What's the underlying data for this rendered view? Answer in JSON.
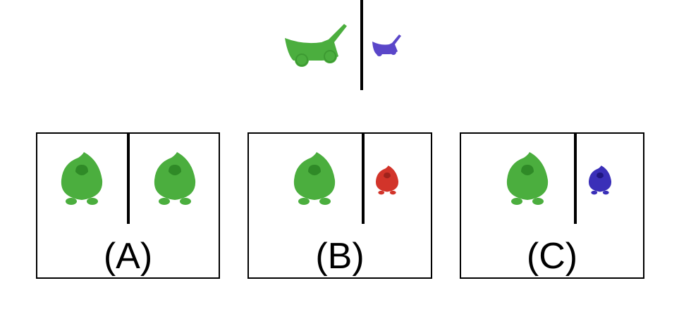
{
  "prompt": {
    "left_object": {
      "icon": "lawn-mower-icon",
      "color": "#4bae3e"
    },
    "right_object": {
      "icon": "lawn-mower-icon",
      "color": "#5a46c9"
    }
  },
  "options": [
    {
      "label": "(A)",
      "left": {
        "icon": "blob-creature-icon",
        "color": "#4bae3e"
      },
      "right": {
        "icon": "blob-creature-icon",
        "color": "#4bae3e"
      }
    },
    {
      "label": "(B)",
      "left": {
        "icon": "blob-creature-icon",
        "color": "#4bae3e"
      },
      "right": {
        "icon": "blob-creature-icon",
        "color": "#d2342a"
      }
    },
    {
      "label": "(C)",
      "left": {
        "icon": "blob-creature-icon",
        "color": "#4bae3e"
      },
      "right": {
        "icon": "blob-creature-icon",
        "color": "#3a2fb8"
      }
    }
  ]
}
